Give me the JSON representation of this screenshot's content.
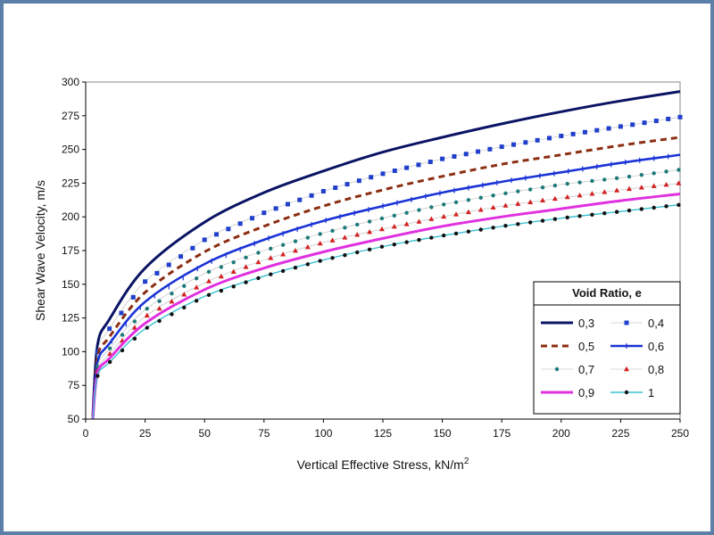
{
  "chart_data": {
    "type": "line",
    "title": "",
    "xlabel": "Vertical Effective Stress, kN/m",
    "xlabel_sup": "2",
    "ylabel": "Shear Wave Velocity, m/s",
    "xlim": [
      0,
      250
    ],
    "ylim": [
      50,
      300
    ],
    "xticks": [
      0,
      25,
      50,
      75,
      100,
      125,
      150,
      175,
      200,
      225,
      250
    ],
    "yticks": [
      50,
      75,
      100,
      125,
      150,
      175,
      200,
      225,
      250,
      275,
      300
    ],
    "grid": false,
    "legend_title": "Void Ratio, e",
    "legend_position": "lower-right",
    "x": [
      3,
      5,
      10,
      25,
      50,
      75,
      100,
      125,
      150,
      175,
      200,
      225,
      250
    ],
    "series": [
      {
        "name": "0,3",
        "style": "solid-thick",
        "color": "#0b1464",
        "values": [
          52,
          105,
          124,
          162,
          196,
          218,
          234,
          248,
          259,
          269,
          278,
          286,
          293
        ]
      },
      {
        "name": "0,4",
        "style": "square-markers",
        "color": "#1f3fcc",
        "values": [
          51,
          100,
          117,
          152,
          183,
          203,
          219,
          232,
          243,
          252,
          260,
          267,
          274
        ]
      },
      {
        "name": "0,5",
        "style": "dashed",
        "color": "#8b2e12",
        "values": [
          51,
          96,
          111,
          144,
          174,
          193,
          208,
          220,
          230,
          239,
          246,
          253,
          259
        ]
      },
      {
        "name": "0,6",
        "style": "solid-with-ticks",
        "color": "#1a33d6",
        "values": [
          51,
          92,
          106,
          137,
          165,
          183,
          197,
          208,
          218,
          226,
          233,
          240,
          246
        ]
      },
      {
        "name": "0,7",
        "style": "dot-markers",
        "color": "#1e7a7a",
        "values": [
          50,
          89,
          102,
          131,
          158,
          175,
          188,
          199,
          209,
          217,
          224,
          229,
          235
        ]
      },
      {
        "name": "0,8",
        "style": "triangle-markers",
        "color": "#d42020",
        "values": [
          50,
          86,
          98,
          126,
          151,
          168,
          181,
          191,
          200,
          208,
          214,
          220,
          225
        ]
      },
      {
        "name": "0,9",
        "style": "solid-thick",
        "color": "#e030e0",
        "values": [
          50,
          84,
          95,
          121,
          146,
          162,
          174,
          184,
          193,
          200,
          206,
          212,
          217
        ]
      },
      {
        "name": "1",
        "style": "dot-line",
        "color": "#111111",
        "line_color": "#38c0d0",
        "values": [
          50,
          82,
          92,
          117,
          141,
          156,
          168,
          178,
          186,
          193,
          199,
          204,
          209
        ]
      }
    ]
  }
}
